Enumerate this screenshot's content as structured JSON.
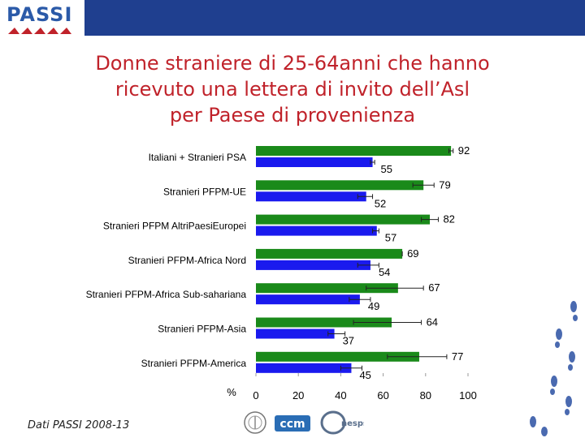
{
  "header": {
    "logo_text": "PASSI"
  },
  "title": {
    "line1": "Donne straniere di 25-64anni che hanno",
    "line2": "ricevuto una lettera di invito dell’Asl",
    "line3": "per Paese di provenienza"
  },
  "footer": {
    "source": "Dati PASSI 2008-13",
    "logos": [
      "ccm",
      "Cnesps"
    ]
  },
  "colors": {
    "green": "#1a8a1a",
    "blue": "#1a1aee",
    "title_red": "#c0222a",
    "header_blue": "#1f3f8f"
  },
  "chart_data": {
    "type": "bar",
    "orientation": "horizontal",
    "categories": [
      "Italiani + Stranieri PSA",
      "Stranieri PFPM-UE",
      "Stranieri PFPM AltriPaesiEuropei",
      "Stranieri PFPM-Africa Nord",
      "Stranieri PFPM-Africa Sub-sahariana",
      "Stranieri PFPM-Asia",
      "Stranieri PFPM-America"
    ],
    "series": [
      {
        "color": "#1a8a1a",
        "values": [
          92,
          79,
          82,
          69,
          67,
          64,
          77
        ]
      },
      {
        "color": "#1a1aee",
        "values": [
          55,
          52,
          57,
          54,
          49,
          37,
          45
        ]
      }
    ],
    "error_bars": {
      "green": [
        [
          91,
          93
        ],
        [
          74,
          84
        ],
        [
          78,
          86
        ],
        [
          69,
          69
        ],
        [
          52,
          79
        ],
        [
          46,
          78
        ],
        [
          62,
          90
        ]
      ],
      "blue": [
        [
          54,
          56
        ],
        [
          48,
          55
        ],
        [
          55,
          58
        ],
        [
          48,
          58
        ],
        [
          44,
          54
        ],
        [
          34,
          42
        ],
        [
          40,
          50
        ]
      ]
    },
    "xlabel": "%",
    "xlim": [
      0,
      100
    ],
    "xticks": [
      0,
      20,
      40,
      60,
      80,
      100
    ],
    "grid": false
  }
}
